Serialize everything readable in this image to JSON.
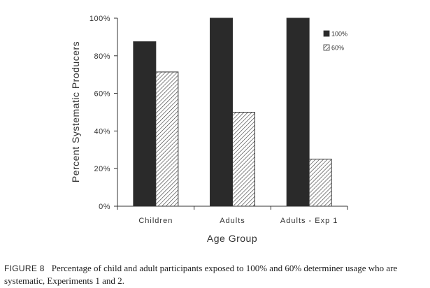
{
  "chart_data": {
    "type": "bar",
    "categories": [
      "Children",
      "Adults",
      "Adults - Exp 1"
    ],
    "series": [
      {
        "name": "100%",
        "values": [
          87.5,
          100,
          100
        ],
        "color": "#2a2a2a",
        "pattern": "solid"
      },
      {
        "name": "60%",
        "values": [
          71.4,
          50,
          25
        ],
        "color": "#ffffff",
        "pattern": "diagonal-hatch"
      }
    ],
    "xlabel": "Age Group",
    "ylabel": "Percent Systematic Producers",
    "ylim": [
      0,
      100
    ],
    "yticks": [
      "0%",
      "20%",
      "40%",
      "60%",
      "80%",
      "100%"
    ],
    "grid": false,
    "legend": "top-right"
  },
  "caption": {
    "label": "FIGURE 8",
    "text": "Percentage of child and adult participants exposed to 100% and 60% determiner usage who are systematic, Experiments 1 and 2."
  }
}
